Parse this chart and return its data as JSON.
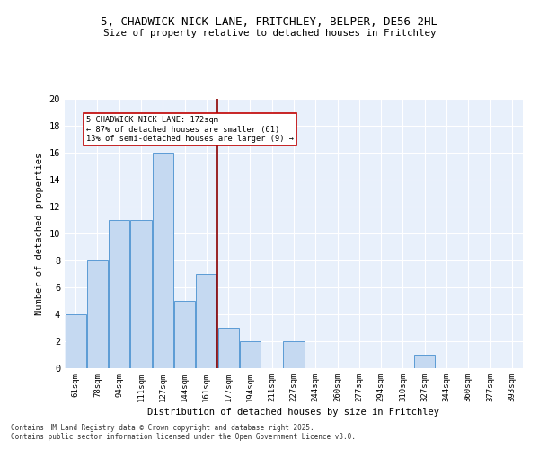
{
  "title": "5, CHADWICK NICK LANE, FRITCHLEY, BELPER, DE56 2HL",
  "subtitle": "Size of property relative to detached houses in Fritchley",
  "xlabel": "Distribution of detached houses by size in Fritchley",
  "ylabel": "Number of detached properties",
  "categories": [
    "61sqm",
    "78sqm",
    "94sqm",
    "111sqm",
    "127sqm",
    "144sqm",
    "161sqm",
    "177sqm",
    "194sqm",
    "211sqm",
    "227sqm",
    "244sqm",
    "260sqm",
    "277sqm",
    "294sqm",
    "310sqm",
    "327sqm",
    "344sqm",
    "360sqm",
    "377sqm",
    "393sqm"
  ],
  "values": [
    4,
    8,
    11,
    11,
    16,
    5,
    7,
    3,
    2,
    0,
    2,
    0,
    0,
    0,
    0,
    0,
    1,
    0,
    0,
    0,
    0
  ],
  "bar_color": "#c5d9f1",
  "bar_edge_color": "#5b9bd5",
  "ref_line_color": "#8b0000",
  "annotation_text": "5 CHADWICK NICK LANE: 172sqm\n← 87% of detached houses are smaller (61)\n13% of semi-detached houses are larger (9) →",
  "annotation_box_color": "#ffffff",
  "annotation_box_edge": "#c00000",
  "ylim": [
    0,
    20
  ],
  "yticks": [
    0,
    2,
    4,
    6,
    8,
    10,
    12,
    14,
    16,
    18,
    20
  ],
  "footnote1": "Contains HM Land Registry data © Crown copyright and database right 2025.",
  "footnote2": "Contains public sector information licensed under the Open Government Licence v3.0.",
  "bg_color": "#e8f0fb",
  "fig_bg_color": "#ffffff"
}
